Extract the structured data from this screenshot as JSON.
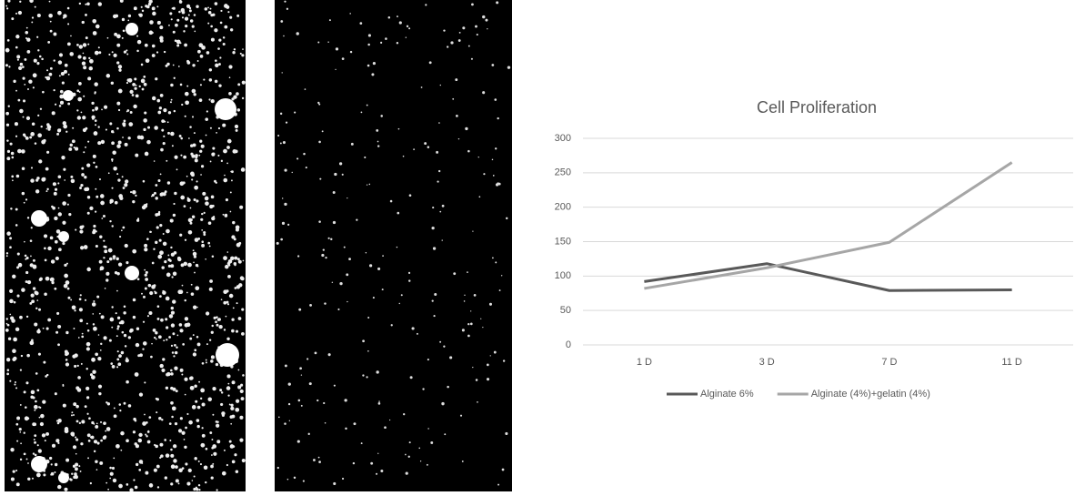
{
  "chart_data": {
    "type": "line",
    "title": "Cell Proliferation",
    "categories": [
      "1 D",
      "3 D",
      "7 D",
      "11 D"
    ],
    "series": [
      {
        "name": "Alginate 6%",
        "color": "#595959",
        "values": [
          92,
          118,
          79,
          80
        ]
      },
      {
        "name": "Alginate (4%)+gelatin (4%)",
        "color": "#a6a6a6",
        "values": [
          82,
          112,
          149,
          265
        ]
      }
    ],
    "ylim": [
      0,
      300
    ],
    "yticks": [
      0,
      50,
      100,
      150,
      200,
      250,
      300
    ],
    "grid": true,
    "legend": "bottom"
  }
}
